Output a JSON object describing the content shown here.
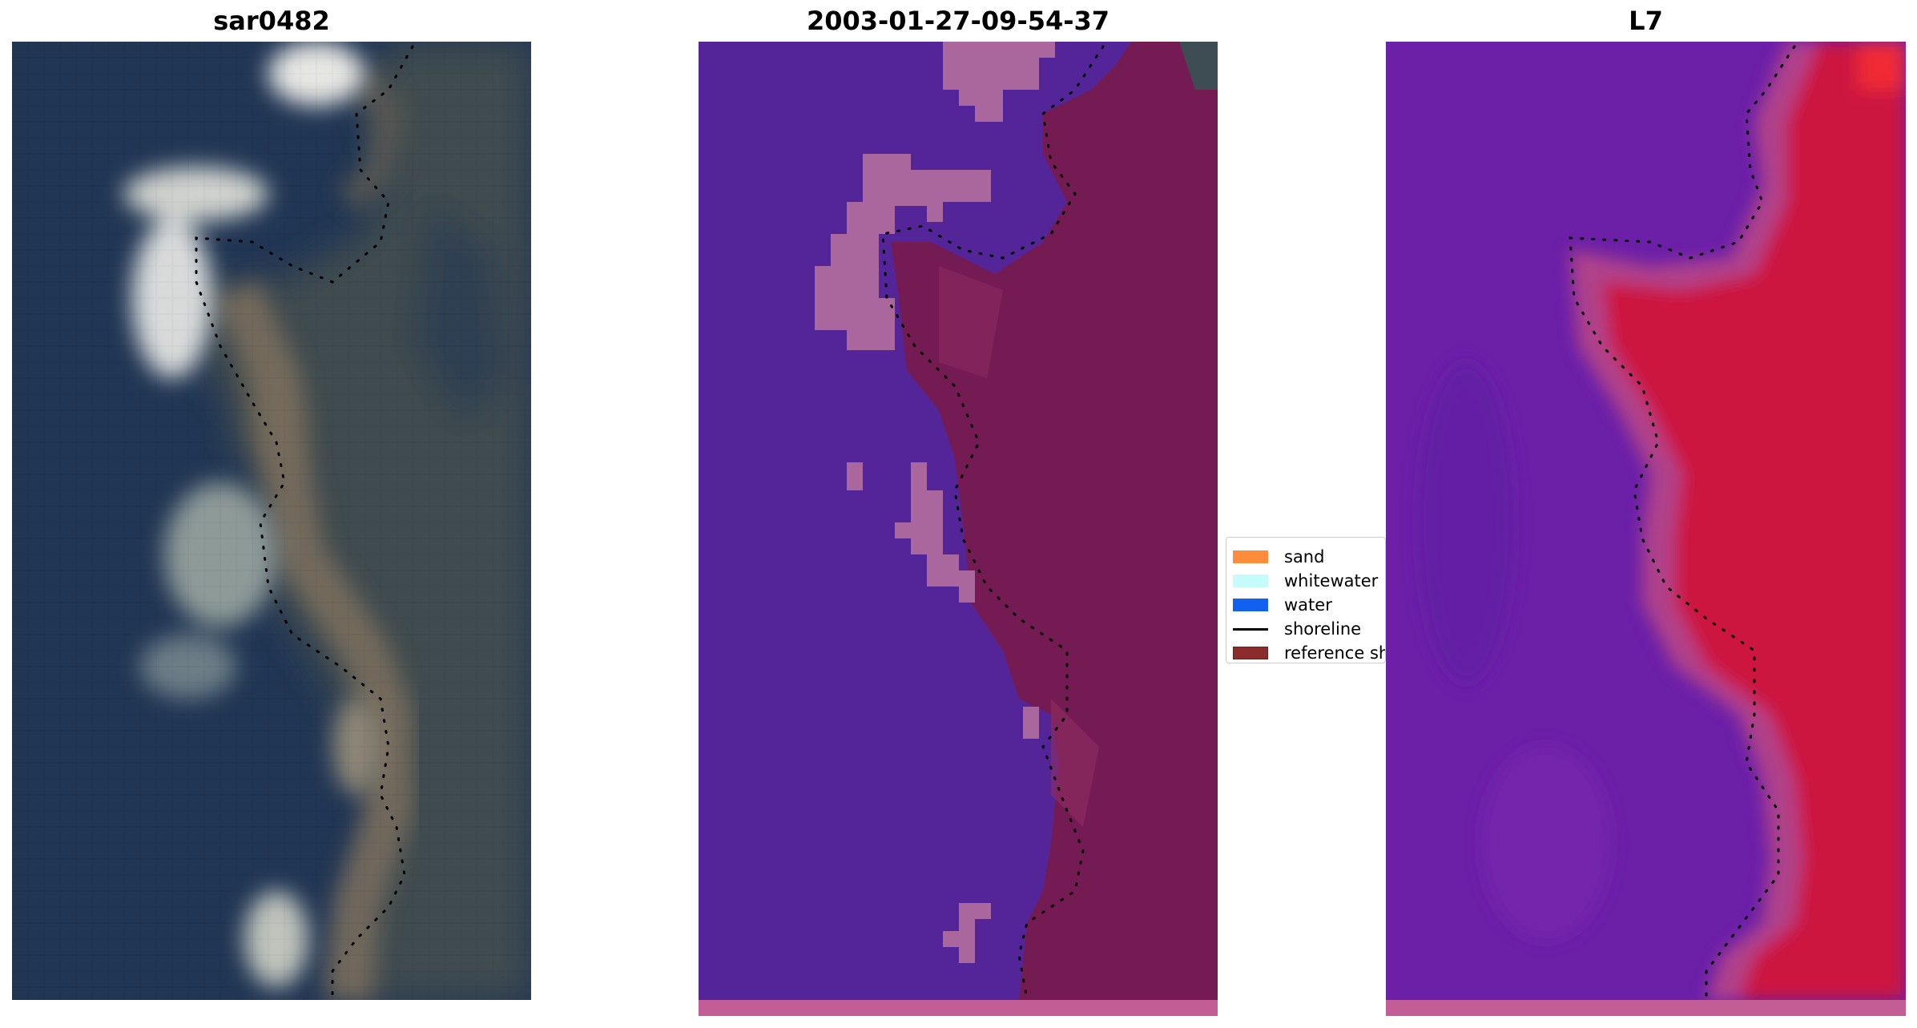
{
  "titles": {
    "left": "sar0482",
    "middle": "2003-01-27-09-54-37",
    "right": "L7"
  },
  "legend": {
    "items": [
      {
        "label": "sand",
        "color": "#ff8c3a",
        "kind": "patch"
      },
      {
        "label": "whitewater",
        "color": "#c6fbfb",
        "kind": "patch"
      },
      {
        "label": "water",
        "color": "#1160f0",
        "kind": "patch"
      },
      {
        "label": "shoreline",
        "color": "#000000",
        "kind": "line"
      },
      {
        "label": "reference shoreline",
        "color": "#8b2b2b",
        "kind": "patch"
      }
    ]
  },
  "colors": {
    "ocean_rgb": "#203553",
    "land_rgb": "#3c4a4e",
    "surf_rgb": "#d9dbd8",
    "water_class": "#542599",
    "whitewater_class": "#a9679e",
    "land_class": "#761b52",
    "ndwi_water": "#6a1ea8",
    "ndwi_land": "#cc1640",
    "ndwi_transition": "#b0508a",
    "bottom_strip": "#c25e95"
  }
}
